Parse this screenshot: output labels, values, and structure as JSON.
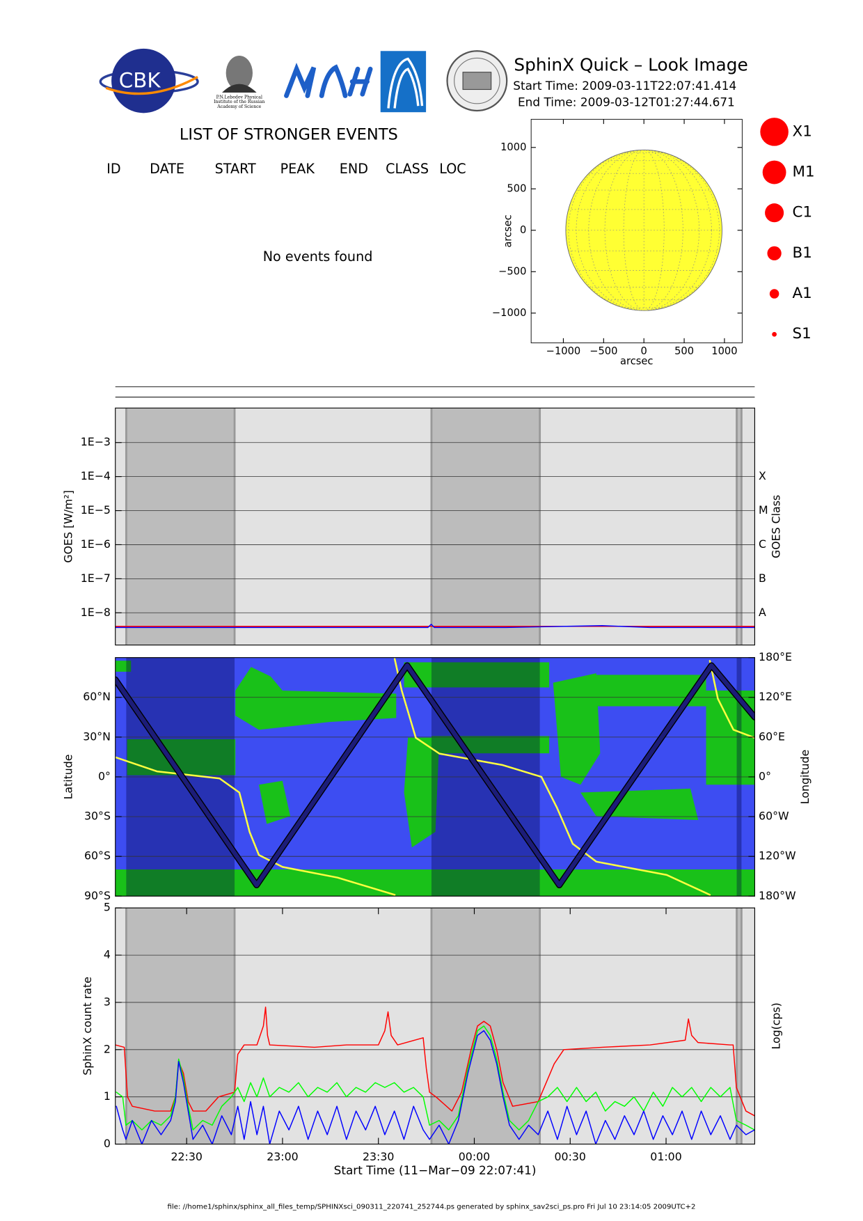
{
  "header": {
    "title": "SphinX Quick – Look Image",
    "start_time": "Start Time: 2009-03-11T22:07:41.414",
    "end_time": "End Time: 2009-03-12T01:27:44.671",
    "logos": {
      "cbk": "CBK",
      "lebedev": [
        "P.N.Lebedev Physical",
        "Institute of the Russian",
        "Academy of Science"
      ]
    }
  },
  "events": {
    "title": "LIST OF STRONGER EVENTS",
    "columns": [
      "ID",
      "DATE",
      "START",
      "PEAK",
      "END",
      "CLASS",
      "LOC"
    ],
    "message": "No events found"
  },
  "chart_data": [
    {
      "type": "disk",
      "xlabel": "arcsec",
      "ylabel": "arcsec",
      "xlim": [
        -1400,
        1220
      ],
      "ylim": [
        -1360,
        1340
      ],
      "xticks": [
        {
          "value": -1000,
          "label": "−1000"
        },
        {
          "value": -500,
          "label": "−500"
        },
        0,
        500,
        1000
      ],
      "yticks": [
        {
          "value": -1000,
          "label": "−1000"
        },
        {
          "value": -500,
          "label": "−500"
        },
        0,
        500,
        1000
      ],
      "disk_radius": 970,
      "color": "#ffff33",
      "grid": true,
      "legend": {
        "labels": [
          "X1",
          "M1",
          "C1",
          "B1",
          "A1",
          "S1"
        ],
        "color": "#ff0000"
      }
    },
    {
      "type": "line",
      "ylabel": "GOES [W/m²]",
      "y2label": "GOES Class",
      "ylog": true,
      "grid": true,
      "xlim": [
        7.69,
        207.74
      ],
      "ylim": [
        1.13e-09,
        0.0103
      ],
      "yticks": [
        {
          "value": 0.001,
          "label": "1E−3"
        },
        {
          "value": 0.0001,
          "label": "1E−4"
        },
        {
          "value": 1e-05,
          "label": "1E−5"
        },
        {
          "value": 1e-06,
          "label": "1E−6"
        },
        {
          "value": 1e-07,
          "label": "1E−7"
        },
        {
          "value": 1e-08,
          "label": "1E−8"
        }
      ],
      "class_ticks": [
        {
          "value": 0.0001,
          "label": "X"
        },
        {
          "value": 1e-05,
          "label": "M"
        },
        {
          "value": 1e-06,
          "label": "C"
        },
        {
          "value": 1e-07,
          "label": "B"
        },
        {
          "value": 1e-08,
          "label": "A"
        }
      ],
      "shaded": [
        [
          11.1,
          45.0
        ],
        [
          106.6,
          140.5
        ],
        [
          202.1,
          203.6
        ]
      ],
      "series": [
        {
          "color": "#ff0000",
          "x": [
            7.7,
            50,
            100,
            106.6,
            150,
            207.7
          ],
          "values": [
            4e-09,
            4e-09,
            4e-09,
            4e-09,
            4e-09,
            4e-09
          ]
        },
        {
          "color": "#0000ff",
          "x": [
            7.7,
            60,
            105.5,
            106.5,
            107.5,
            130,
            160,
            175,
            207.7
          ],
          "values": [
            3.7e-09,
            3.7e-09,
            3.7e-09,
            4.6e-09,
            3.7e-09,
            3.7e-09,
            4.2e-09,
            3.7e-09,
            3.7e-09
          ]
        }
      ]
    },
    {
      "type": "line",
      "ylabel": "Latitude",
      "y2label": "Longitude",
      "grid": true,
      "xlim": [
        7.69,
        207.74
      ],
      "ylim": [
        -90,
        90
      ],
      "y2lim": [
        -180,
        180
      ],
      "yticks": [
        {
          "value": 60,
          "label": "60°N"
        },
        {
          "value": 30,
          "label": "30°N"
        },
        {
          "value": 0,
          "label": "0°"
        },
        {
          "value": -30,
          "label": "30°S"
        },
        {
          "value": -60,
          "label": "60°S"
        },
        {
          "value": -90,
          "label": "90°S"
        }
      ],
      "y2ticks": [
        {
          "value": 180,
          "label": "180°E"
        },
        {
          "value": 120,
          "label": "120°E"
        },
        {
          "value": 60,
          "label": "60°E"
        },
        {
          "value": 0,
          "label": "0°"
        },
        {
          "value": -60,
          "label": "60°W"
        },
        {
          "value": -120,
          "label": "120°W"
        },
        {
          "value": -180,
          "label": "180°W"
        }
      ],
      "shaded": [
        [
          11.1,
          45.0
        ],
        [
          106.6,
          140.5
        ],
        [
          202.1,
          203.6
        ]
      ],
      "series": [
        {
          "color": "#ffff40",
          "axis": "y2",
          "x": [
            7.7,
            20.7,
            40.3,
            46.5,
            49.7,
            52.6,
            60.0,
            77.2,
            95.1,
            null,
            95.1,
            97.3,
            101.7,
            109.1,
            128.7,
            141.0,
            145.9,
            150.8,
            158.2,
            180.2,
            193.7,
            null,
            193.7,
            196.2,
            201.1,
            207.7
          ],
          "values": [
            29.6,
            8.3,
            -2.4,
            -23.7,
            -83,
            -118,
            -136,
            -152,
            -178,
            null,
            178,
            130,
            59,
            35,
            18,
            0,
            -47,
            -101,
            -128,
            -148,
            -178,
            null,
            175,
            118,
            71,
            59
          ]
        },
        {
          "color": "#1c1c78",
          "x": [
            7.69,
            51.9,
            99.0,
            146.6,
            194.2,
            207.74
          ],
          "values": [
            73.4,
            -81.7,
            84.1,
            -81.7,
            84.1,
            45
          ]
        }
      ]
    },
    {
      "type": "line",
      "ylabel": "SphinX count rate",
      "y2label": "Log(cps)",
      "xlabel": "Start Time (11−Mar−09 22:07:41)",
      "grid": true,
      "xlim": [
        7.69,
        207.74
      ],
      "ylim": [
        0,
        5
      ],
      "yticks": [
        0,
        1,
        2,
        3,
        4,
        5
      ],
      "xticks": [
        {
          "value": 30,
          "label": "22:30"
        },
        {
          "value": 60,
          "label": "23:00"
        },
        {
          "value": 90,
          "label": "23:30"
        },
        {
          "value": 120,
          "label": "00:00"
        },
        {
          "value": 150,
          "label": "00:30"
        },
        {
          "value": 180,
          "label": "01:00"
        }
      ],
      "shaded": [
        [
          11.1,
          45.0
        ],
        [
          106.6,
          140.5
        ],
        [
          202.1,
          203.6
        ]
      ],
      "series": [
        {
          "color": "#ff0000",
          "x": [
            7.7,
            10.5,
            11.5,
            13,
            20,
            25,
            26.5,
            27.5,
            29,
            30.5,
            32,
            36,
            40,
            45,
            46,
            48,
            52,
            54,
            54.7,
            55.3,
            56,
            70,
            80,
            90,
            92,
            93,
            94,
            96,
            104,
            105,
            106,
            108,
            113,
            116,
            119,
            121,
            123,
            125,
            127,
            129,
            132,
            140,
            145,
            148,
            160,
            175,
            186,
            187,
            188,
            190,
            200,
            201,
            202,
            205,
            207.7
          ],
          "values": [
            2.1,
            2.05,
            1.0,
            0.8,
            0.7,
            0.7,
            1.0,
            1.75,
            1.5,
            0.9,
            0.7,
            0.7,
            1.0,
            1.1,
            1.9,
            2.1,
            2.1,
            2.5,
            2.9,
            2.3,
            2.1,
            2.05,
            2.1,
            2.1,
            2.4,
            2.8,
            2.3,
            2.1,
            2.25,
            1.6,
            1.1,
            1.0,
            0.7,
            1.1,
            2.0,
            2.5,
            2.6,
            2.5,
            2.0,
            1.3,
            0.8,
            0.9,
            1.7,
            2.0,
            2.05,
            2.1,
            2.2,
            2.65,
            2.3,
            2.15,
            2.1,
            2.1,
            1.2,
            0.7,
            0.6
          ]
        },
        {
          "color": "#00ff00",
          "x": [
            8,
            10,
            11,
            13,
            16,
            19,
            22,
            25,
            26.5,
            27.5,
            29,
            30.5,
            32,
            35,
            38,
            41,
            44,
            46,
            48,
            50,
            52,
            54,
            56,
            59,
            62,
            65,
            68,
            71,
            74,
            77,
            80,
            83,
            86,
            89,
            92,
            95,
            98,
            101,
            104,
            106,
            109,
            112,
            115,
            118,
            121,
            123,
            125,
            127,
            129,
            131,
            134,
            137,
            140,
            143,
            146,
            149,
            152,
            155,
            158,
            161,
            164,
            167,
            170,
            173,
            176,
            179,
            182,
            185,
            188,
            191,
            194,
            197,
            200,
            202,
            205,
            207.7
          ],
          "values": [
            1.1,
            1.0,
            0.4,
            0.5,
            0.3,
            0.5,
            0.4,
            0.6,
            1.0,
            1.8,
            1.4,
            0.8,
            0.3,
            0.5,
            0.4,
            0.8,
            1.0,
            1.2,
            0.9,
            1.3,
            1.0,
            1.4,
            1.0,
            1.2,
            1.1,
            1.3,
            1.0,
            1.2,
            1.1,
            1.3,
            1.0,
            1.2,
            1.1,
            1.3,
            1.2,
            1.3,
            1.1,
            1.2,
            1.0,
            0.4,
            0.5,
            0.3,
            0.6,
            1.6,
            2.4,
            2.5,
            2.3,
            1.8,
            1.1,
            0.5,
            0.3,
            0.5,
            0.9,
            1.0,
            1.2,
            0.9,
            1.2,
            0.9,
            1.1,
            0.7,
            0.9,
            0.8,
            1.0,
            0.7,
            1.1,
            0.8,
            1.2,
            1.0,
            1.2,
            0.9,
            1.2,
            1.0,
            1.2,
            0.5,
            0.4,
            0.3
          ]
        },
        {
          "color": "#0000ff",
          "x": [
            8,
            10,
            11,
            13,
            16,
            19,
            22,
            25,
            26.5,
            27.5,
            29,
            30.5,
            32,
            35,
            38,
            41,
            44,
            46,
            48,
            50,
            52,
            54,
            56,
            59,
            62,
            65,
            68,
            71,
            74,
            77,
            80,
            83,
            86,
            89,
            92,
            95,
            98,
            101,
            104,
            106,
            109,
            112,
            115,
            118,
            121,
            123,
            125,
            127,
            129,
            131,
            134,
            137,
            140,
            143,
            146,
            149,
            152,
            155,
            158,
            161,
            164,
            167,
            170,
            173,
            176,
            179,
            182,
            185,
            188,
            191,
            194,
            197,
            200,
            202,
            205,
            207.7
          ],
          "values": [
            0.8,
            0.3,
            0.1,
            0.5,
            0.0,
            0.5,
            0.2,
            0.5,
            0.9,
            1.75,
            1.3,
            0.7,
            0.1,
            0.4,
            0.0,
            0.6,
            0.2,
            0.8,
            0.1,
            0.9,
            0.2,
            0.8,
            0.0,
            0.7,
            0.3,
            0.8,
            0.1,
            0.7,
            0.2,
            0.8,
            0.1,
            0.7,
            0.3,
            0.8,
            0.2,
            0.7,
            0.1,
            0.8,
            0.3,
            0.1,
            0.4,
            0.0,
            0.5,
            1.5,
            2.3,
            2.4,
            2.2,
            1.7,
            1.0,
            0.4,
            0.1,
            0.4,
            0.2,
            0.7,
            0.1,
            0.8,
            0.2,
            0.7,
            0.0,
            0.5,
            0.1,
            0.6,
            0.2,
            0.7,
            0.1,
            0.6,
            0.2,
            0.7,
            0.1,
            0.7,
            0.2,
            0.6,
            0.1,
            0.4,
            0.2,
            0.3
          ]
        }
      ]
    }
  ],
  "footer": "file: //home1/sphinx/sphinx_all_files_temp/SPHINXsci_090311_220741_252744.ps generated by sphinx_sav2sci_ps.pro Fri Jul 10 23:14:05 2009UTC+2"
}
